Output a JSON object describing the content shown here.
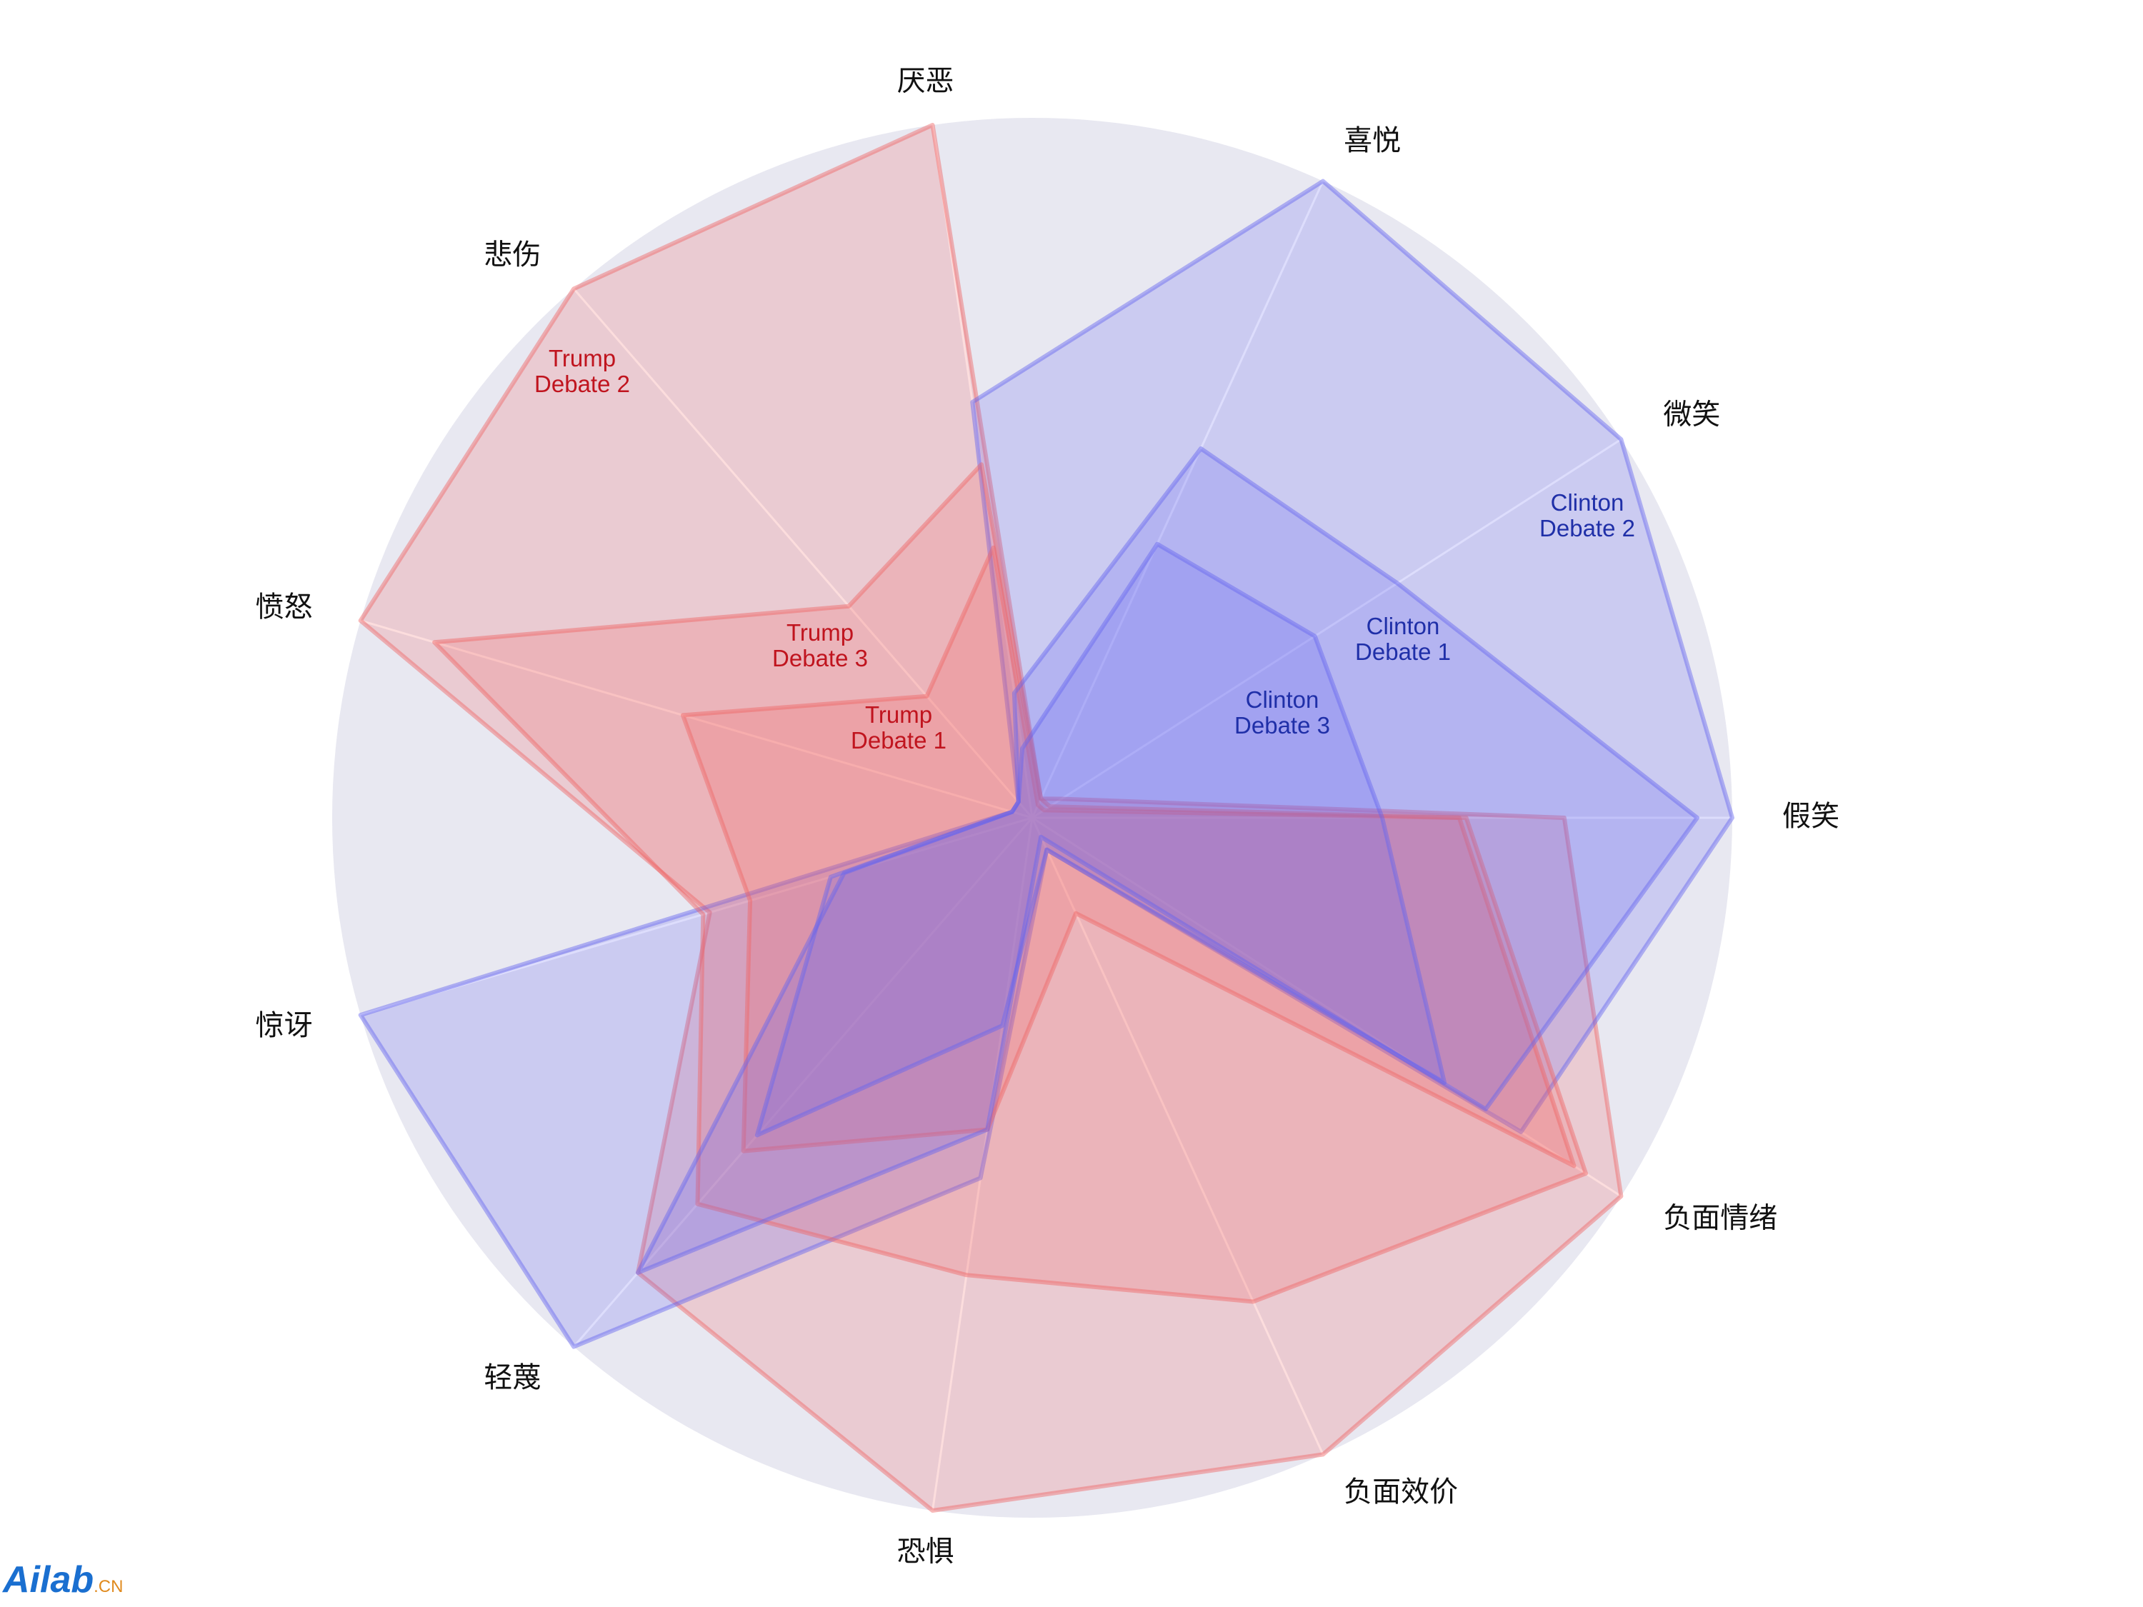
{
  "chart_data": {
    "type": "radar",
    "categories": [
      "假笑",
      "微笑",
      "喜悦",
      "厌恶",
      "悲伤",
      "愤怒",
      "惊讶",
      "轻蔑",
      "恐惧",
      "负面效价",
      "负面情绪"
    ],
    "rlim": [
      0,
      100
    ],
    "background": "#e8e8f1",
    "series": [
      {
        "name": "Trump Debate 2",
        "color": "#f06464",
        "values": [
          76,
          5,
          3,
          100,
          100,
          100,
          48,
          86,
          100,
          100,
          100
        ]
      },
      {
        "name": "Clinton Debate 2",
        "color": "#6464f0",
        "values": [
          100,
          100,
          100,
          60,
          3,
          3,
          100,
          100,
          52,
          5,
          83
        ]
      },
      {
        "name": "Trump Debate 3",
        "color": "#f06464",
        "values": [
          62,
          3,
          3,
          51,
          40,
          89,
          49,
          73,
          66,
          76,
          94
        ]
      },
      {
        "name": "Trump Debate 1",
        "color": "#f06464",
        "values": [
          61,
          2,
          2,
          39,
          23,
          52,
          42,
          63,
          45,
          15,
          92
        ]
      },
      {
        "name": "Clinton Debate 1",
        "color": "#6464f0",
        "values": [
          95,
          62,
          58,
          18,
          3,
          3,
          28,
          86,
          45,
          3,
          77
        ]
      },
      {
        "name": "Clinton Debate 3",
        "color": "#6464f0",
        "values": [
          50,
          48,
          43,
          10,
          3,
          3,
          30,
          60,
          30,
          5,
          70
        ]
      }
    ]
  },
  "watermark": {
    "brand": "Ailab",
    "suffix": ".CN"
  }
}
